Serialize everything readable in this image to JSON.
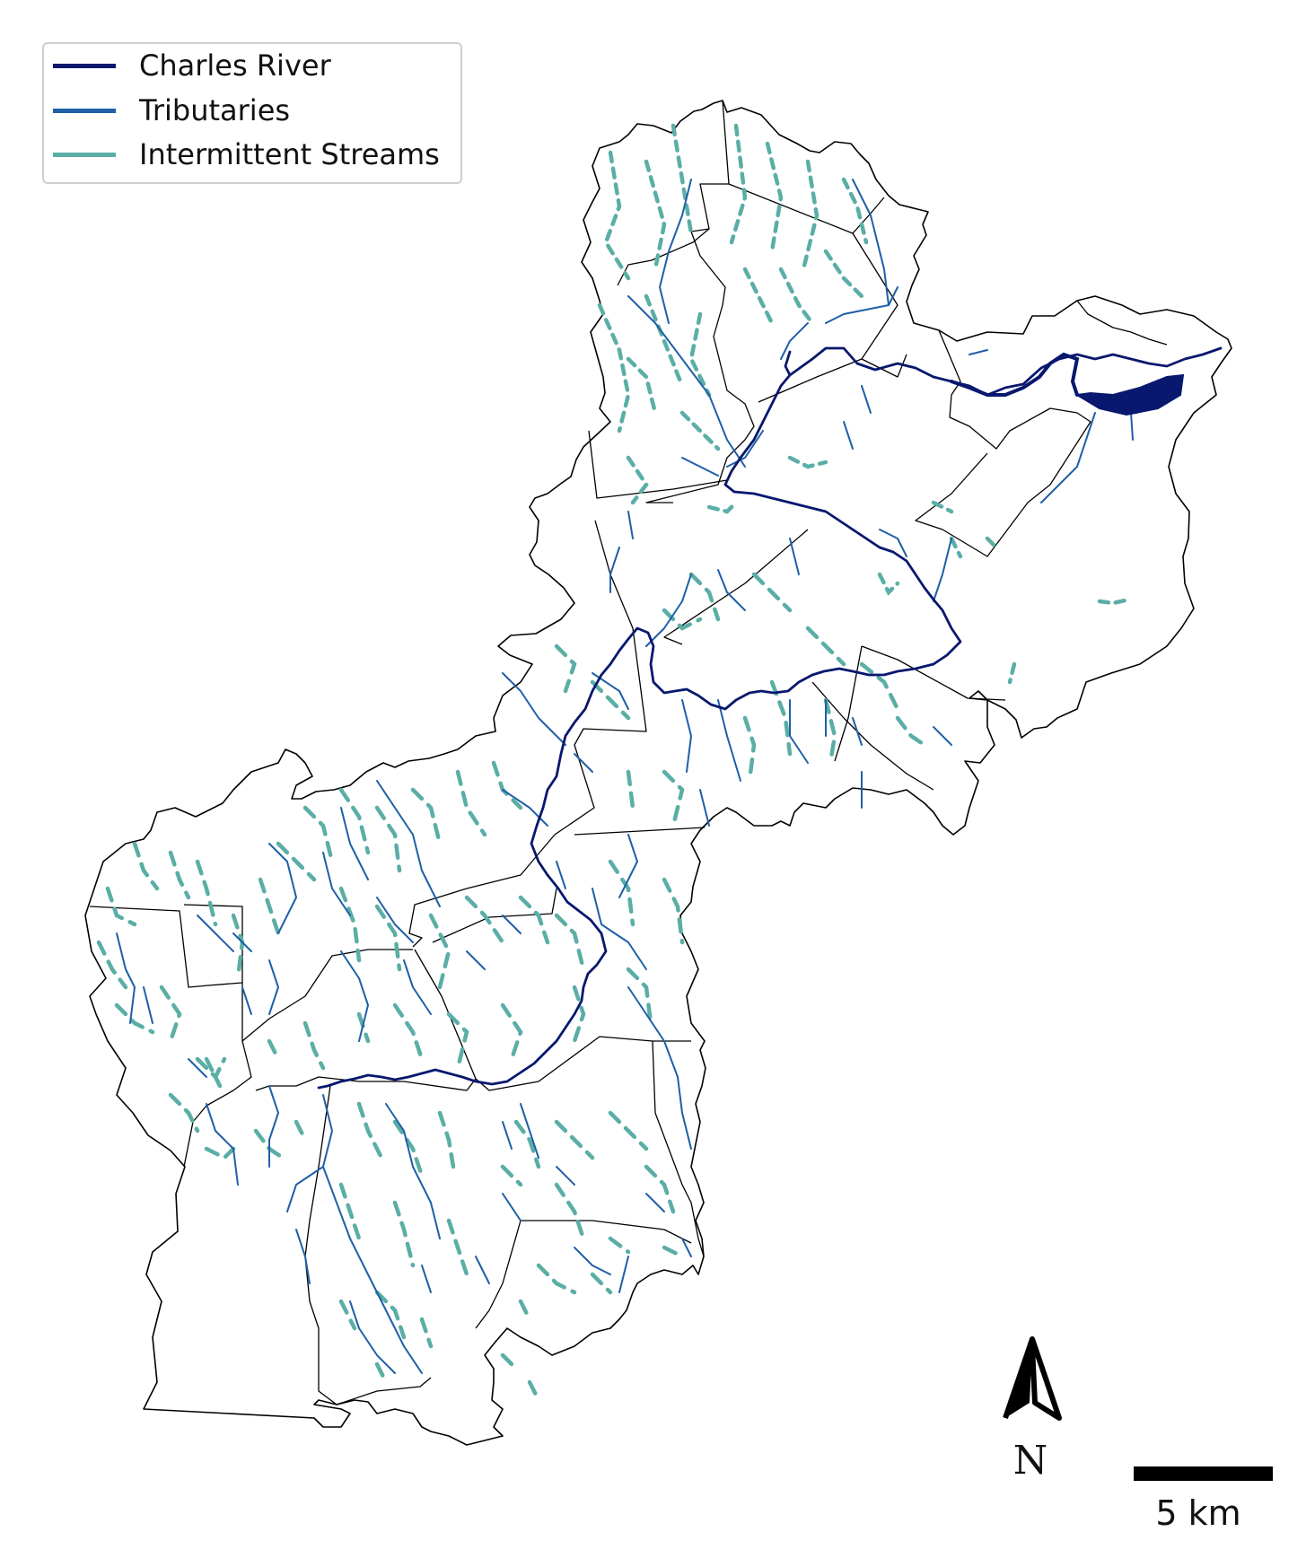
{
  "legend": {
    "items": [
      {
        "label": "Charles River",
        "color": "#08186e"
      },
      {
        "label": "Tributaries",
        "color": "#1f5fa8"
      },
      {
        "label": "Intermittent Streams",
        "color": "#5aaea6"
      }
    ]
  },
  "north_arrow": {
    "label": "N"
  },
  "scale_bar": {
    "label": "5 km"
  },
  "colors": {
    "boundary": "#000000",
    "charles_river": "#08186e",
    "tributaries": "#1f5fa8",
    "intermittent": "#5aaea6"
  }
}
